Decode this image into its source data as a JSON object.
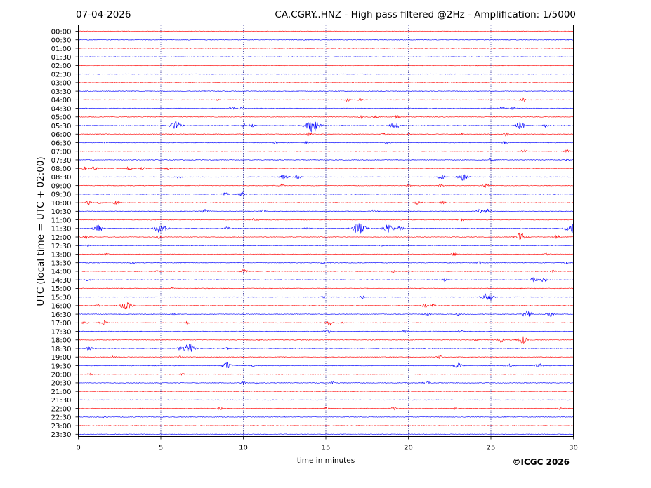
{
  "header": {
    "date": "07-04-2026",
    "title": "CA.CGRY..HNZ - High pass filtered @2Hz - Amplification: 1/5000"
  },
  "footer": {
    "copyright": "©ICGC 2026"
  },
  "chart_data": {
    "type": "line",
    "xlabel": "time in minutes",
    "ylabel": "UTC (local time = UTC + 02:00)",
    "xlim": [
      0,
      30
    ],
    "x_ticks": [
      0,
      5,
      10,
      15,
      20,
      25,
      30
    ],
    "grid": "vertical dotted lines at 5-minute intervals",
    "series_colors": {
      "even_rows": "#ff0000",
      "odd_rows": "#0000ff"
    },
    "rows": [
      {
        "label": "00:00",
        "events": []
      },
      {
        "label": "00:30",
        "events": []
      },
      {
        "label": "01:00",
        "events": []
      },
      {
        "label": "01:30",
        "events": []
      },
      {
        "label": "02:00",
        "events": []
      },
      {
        "label": "02:30",
        "events": []
      },
      {
        "label": "03:00",
        "events": []
      },
      {
        "label": "03:30",
        "events": []
      },
      {
        "label": "04:00",
        "events": [
          {
            "x": 8.5,
            "a": 1
          },
          {
            "x": 16.3,
            "a": 2
          },
          {
            "x": 17.1,
            "a": 1.5
          },
          {
            "x": 27.0,
            "a": 3
          }
        ]
      },
      {
        "label": "04:30",
        "events": [
          {
            "x": 9.3,
            "a": 2
          },
          {
            "x": 9.9,
            "a": 2.5
          },
          {
            "x": 25.6,
            "a": 2
          },
          {
            "x": 26.3,
            "a": 2.5
          }
        ]
      },
      {
        "label": "05:00",
        "events": [
          {
            "x": 4.1,
            "a": 1
          },
          {
            "x": 17.1,
            "a": 2
          },
          {
            "x": 18.0,
            "a": 1.5
          },
          {
            "x": 19.3,
            "a": 2.5
          }
        ]
      },
      {
        "label": "05:30",
        "events": [
          {
            "x": 5.9,
            "a": 6
          },
          {
            "x": 10.0,
            "a": 3
          },
          {
            "x": 10.5,
            "a": 2
          },
          {
            "x": 14.2,
            "a": 9
          },
          {
            "x": 19.2,
            "a": 5
          },
          {
            "x": 26.8,
            "a": 5
          },
          {
            "x": 28.3,
            "a": 2
          }
        ]
      },
      {
        "label": "06:00",
        "events": [
          {
            "x": 14.0,
            "a": 2.5
          },
          {
            "x": 18.5,
            "a": 1.5
          },
          {
            "x": 20.0,
            "a": 1.5
          },
          {
            "x": 23.2,
            "a": 1.5
          },
          {
            "x": 25.9,
            "a": 2.5
          }
        ]
      },
      {
        "label": "06:30",
        "events": [
          {
            "x": 1.6,
            "a": 1
          },
          {
            "x": 12.0,
            "a": 2
          },
          {
            "x": 13.8,
            "a": 1.5
          },
          {
            "x": 18.7,
            "a": 2
          },
          {
            "x": 25.8,
            "a": 2.5
          }
        ]
      },
      {
        "label": "07:00",
        "events": [
          {
            "x": 27.0,
            "a": 2
          },
          {
            "x": 29.6,
            "a": 2
          }
        ]
      },
      {
        "label": "07:30",
        "events": [
          {
            "x": 25.1,
            "a": 2.5
          },
          {
            "x": 29.6,
            "a": 1.5
          }
        ]
      },
      {
        "label": "08:00",
        "events": [
          {
            "x": 0.4,
            "a": 2
          },
          {
            "x": 1.0,
            "a": 2.5
          },
          {
            "x": 3.1,
            "a": 3
          },
          {
            "x": 3.9,
            "a": 2
          },
          {
            "x": 5.4,
            "a": 1.5
          }
        ]
      },
      {
        "label": "08:30",
        "events": [
          {
            "x": 6.1,
            "a": 2
          },
          {
            "x": 12.5,
            "a": 4
          },
          {
            "x": 13.3,
            "a": 3
          },
          {
            "x": 22.0,
            "a": 3
          },
          {
            "x": 23.3,
            "a": 5
          }
        ]
      },
      {
        "label": "09:00",
        "events": [
          {
            "x": 12.3,
            "a": 2
          },
          {
            "x": 20.0,
            "a": 1.5
          },
          {
            "x": 22.0,
            "a": 1.5
          },
          {
            "x": 24.7,
            "a": 3
          }
        ]
      },
      {
        "label": "09:30",
        "events": [
          {
            "x": 8.9,
            "a": 2
          },
          {
            "x": 9.9,
            "a": 2.5
          }
        ]
      },
      {
        "label": "10:00",
        "events": [
          {
            "x": 0.6,
            "a": 2.5
          },
          {
            "x": 1.3,
            "a": 1.5
          },
          {
            "x": 2.3,
            "a": 2.5
          },
          {
            "x": 20.6,
            "a": 3
          },
          {
            "x": 22.1,
            "a": 2
          }
        ]
      },
      {
        "label": "10:30",
        "events": [
          {
            "x": 7.7,
            "a": 3
          },
          {
            "x": 11.2,
            "a": 2
          },
          {
            "x": 17.9,
            "a": 2.5
          },
          {
            "x": 24.3,
            "a": 2.5
          },
          {
            "x": 24.8,
            "a": 3
          }
        ]
      },
      {
        "label": "11:00",
        "events": [
          {
            "x": 10.7,
            "a": 2.5
          },
          {
            "x": 23.2,
            "a": 2
          }
        ]
      },
      {
        "label": "11:30",
        "events": [
          {
            "x": 1.2,
            "a": 5
          },
          {
            "x": 5.0,
            "a": 7
          },
          {
            "x": 9.0,
            "a": 2
          },
          {
            "x": 13.9,
            "a": 2
          },
          {
            "x": 17.0,
            "a": 8
          },
          {
            "x": 18.8,
            "a": 6
          },
          {
            "x": 19.5,
            "a": 3
          },
          {
            "x": 29.9,
            "a": 7
          }
        ]
      },
      {
        "label": "12:00",
        "events": [
          {
            "x": 0.5,
            "a": 2
          },
          {
            "x": 4.9,
            "a": 2
          },
          {
            "x": 26.8,
            "a": 6
          },
          {
            "x": 29.0,
            "a": 3
          }
        ]
      },
      {
        "label": "12:30",
        "events": [
          {
            "x": 0.5,
            "a": 2
          },
          {
            "x": 18.3,
            "a": 1
          },
          {
            "x": 25.1,
            "a": 1
          }
        ]
      },
      {
        "label": "13:00",
        "events": [
          {
            "x": 1.7,
            "a": 1
          },
          {
            "x": 22.8,
            "a": 2.5
          },
          {
            "x": 28.4,
            "a": 1.5
          }
        ]
      },
      {
        "label": "13:30",
        "events": [
          {
            "x": 3.3,
            "a": 1.5
          },
          {
            "x": 14.8,
            "a": 2
          },
          {
            "x": 24.3,
            "a": 2
          },
          {
            "x": 29.6,
            "a": 2
          }
        ]
      },
      {
        "label": "14:00",
        "events": [
          {
            "x": 4.8,
            "a": 1
          },
          {
            "x": 10.0,
            "a": 3
          },
          {
            "x": 19.1,
            "a": 1.5
          },
          {
            "x": 28.8,
            "a": 2
          }
        ]
      },
      {
        "label": "14:30",
        "events": [
          {
            "x": 0.6,
            "a": 1.5
          },
          {
            "x": 22.2,
            "a": 2
          },
          {
            "x": 27.6,
            "a": 3
          },
          {
            "x": 28.2,
            "a": 2.5
          }
        ]
      },
      {
        "label": "15:00",
        "events": [
          {
            "x": 5.7,
            "a": 1.5
          }
        ]
      },
      {
        "label": "15:30",
        "events": [
          {
            "x": 14.8,
            "a": 1.5
          },
          {
            "x": 17.2,
            "a": 2
          },
          {
            "x": 24.8,
            "a": 6
          }
        ]
      },
      {
        "label": "16:00",
        "events": [
          {
            "x": 1.2,
            "a": 1.5
          },
          {
            "x": 2.9,
            "a": 6
          },
          {
            "x": 21.0,
            "a": 2.5
          },
          {
            "x": 21.5,
            "a": 2
          }
        ]
      },
      {
        "label": "16:30",
        "events": [
          {
            "x": 5.7,
            "a": 1.5
          },
          {
            "x": 21.1,
            "a": 2.5
          },
          {
            "x": 23.0,
            "a": 1.5
          },
          {
            "x": 27.2,
            "a": 5
          },
          {
            "x": 28.6,
            "a": 3
          }
        ]
      },
      {
        "label": "17:00",
        "events": [
          {
            "x": 0.4,
            "a": 2
          },
          {
            "x": 1.5,
            "a": 4
          },
          {
            "x": 6.6,
            "a": 1.5
          },
          {
            "x": 15.2,
            "a": 3.5
          },
          {
            "x": 16.0,
            "a": 2
          }
        ]
      },
      {
        "label": "17:30",
        "events": [
          {
            "x": 15.1,
            "a": 3
          },
          {
            "x": 19.8,
            "a": 2
          },
          {
            "x": 23.2,
            "a": 2
          }
        ]
      },
      {
        "label": "18:00",
        "events": [
          {
            "x": 11.0,
            "a": 1
          },
          {
            "x": 24.1,
            "a": 2
          },
          {
            "x": 25.6,
            "a": 3
          },
          {
            "x": 26.9,
            "a": 5
          }
        ]
      },
      {
        "label": "18:30",
        "events": [
          {
            "x": 0.7,
            "a": 3
          },
          {
            "x": 6.1,
            "a": 2
          },
          {
            "x": 6.7,
            "a": 7
          },
          {
            "x": 9.0,
            "a": 1.5
          }
        ]
      },
      {
        "label": "19:00",
        "events": [
          {
            "x": 2.2,
            "a": 2
          },
          {
            "x": 6.2,
            "a": 2
          },
          {
            "x": 21.9,
            "a": 2
          }
        ]
      },
      {
        "label": "19:30",
        "events": [
          {
            "x": 9.0,
            "a": 5
          },
          {
            "x": 10.6,
            "a": 1.5
          },
          {
            "x": 23.0,
            "a": 4
          },
          {
            "x": 26.1,
            "a": 2
          },
          {
            "x": 27.9,
            "a": 3
          }
        ]
      },
      {
        "label": "20:00",
        "events": [
          {
            "x": 0.7,
            "a": 1.5
          },
          {
            "x": 6.3,
            "a": 1.5
          }
        ]
      },
      {
        "label": "20:30",
        "events": [
          {
            "x": 10.0,
            "a": 2
          },
          {
            "x": 10.8,
            "a": 1.5
          },
          {
            "x": 15.4,
            "a": 1.5
          },
          {
            "x": 21.1,
            "a": 2.5
          }
        ]
      },
      {
        "label": "21:00",
        "events": []
      },
      {
        "label": "21:30",
        "events": []
      },
      {
        "label": "22:00",
        "events": [
          {
            "x": 8.6,
            "a": 2
          },
          {
            "x": 15.0,
            "a": 1.5
          },
          {
            "x": 19.1,
            "a": 2
          },
          {
            "x": 22.8,
            "a": 1.5
          },
          {
            "x": 29.2,
            "a": 1.5
          }
        ]
      },
      {
        "label": "22:30",
        "events": [
          {
            "x": 1.5,
            "a": 1
          }
        ]
      },
      {
        "label": "23:00",
        "events": []
      },
      {
        "label": "23:30",
        "events": []
      }
    ]
  }
}
